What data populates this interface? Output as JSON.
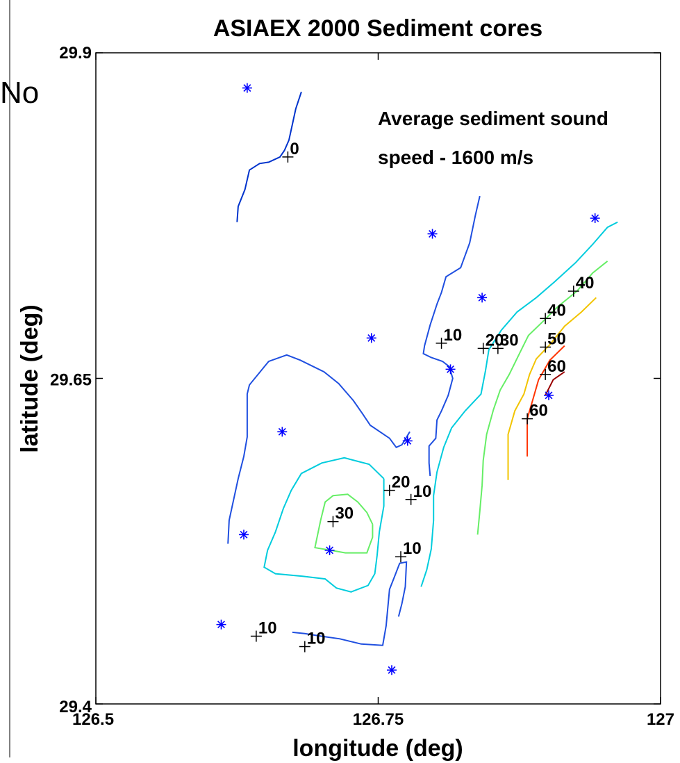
{
  "stray_text": "No",
  "chart_data": {
    "type": "contour",
    "title": "ASIAEX 2000 Sediment cores",
    "xlabel": "longitude (deg)",
    "ylabel": "latitude (deg)",
    "xlim": [
      126.5,
      127
    ],
    "ylim": [
      29.4,
      29.9
    ],
    "xticks": [
      {
        "value": 126.5,
        "label": "126.5"
      },
      {
        "value": 126.75,
        "label": "126.75"
      },
      {
        "value": 127,
        "label": "127"
      }
    ],
    "yticks": [
      {
        "value": 29.9,
        "label": "29.9"
      },
      {
        "value": 29.65,
        "label": "29.65"
      },
      {
        "value": 29.4,
        "label": "29.4"
      }
    ],
    "annotation": [
      "Average sediment sound",
      "speed - 1600 m/s"
    ],
    "core_locations": [
      [
        126.634,
        29.873
      ],
      [
        126.798,
        29.761
      ],
      [
        126.942,
        29.773
      ],
      [
        126.842,
        29.712
      ],
      [
        126.744,
        29.681
      ],
      [
        126.814,
        29.657
      ],
      [
        126.901,
        29.637
      ],
      [
        126.665,
        29.609
      ],
      [
        126.776,
        29.602
      ],
      [
        126.631,
        29.53
      ],
      [
        126.707,
        29.518
      ],
      [
        126.611,
        29.461
      ],
      [
        126.762,
        29.426
      ]
    ],
    "contour_levels": [
      {
        "level": 0,
        "color": "#0033cc"
      },
      {
        "level": 10,
        "color": "#1f4fe0"
      },
      {
        "level": 20,
        "color": "#00ccdd"
      },
      {
        "level": 30,
        "color": "#66ee66"
      },
      {
        "level": 40,
        "color": "#f2c400"
      },
      {
        "level": 50,
        "color": "#ff3300"
      },
      {
        "level": 60,
        "color": "#990000"
      }
    ],
    "contours": [
      {
        "level": 0,
        "points": [
          [
            126.625,
            29.77
          ],
          [
            126.626,
            29.782
          ],
          [
            126.632,
            29.795
          ],
          [
            126.636,
            29.81
          ],
          [
            126.645,
            29.815
          ],
          [
            126.653,
            29.816
          ],
          [
            126.663,
            29.82
          ],
          [
            126.667,
            29.825
          ],
          [
            126.671,
            29.833
          ],
          [
            126.674,
            29.845
          ],
          [
            126.677,
            29.857
          ],
          [
            126.682,
            29.87
          ]
        ]
      },
      {
        "level": 10,
        "points": [
          [
            126.84,
            29.79
          ],
          [
            126.836,
            29.775
          ],
          [
            126.831,
            29.754
          ],
          [
            126.823,
            29.735
          ],
          [
            126.81,
            29.728
          ],
          [
            126.806,
            29.716
          ],
          [
            126.802,
            29.707
          ],
          [
            126.796,
            29.691
          ],
          [
            126.791,
            29.675
          ],
          [
            126.79,
            29.669
          ],
          [
            126.797,
            29.666
          ],
          [
            126.807,
            29.663
          ],
          [
            126.813,
            29.659
          ],
          [
            126.816,
            29.65
          ],
          [
            126.812,
            29.637
          ],
          [
            126.806,
            29.625
          ],
          [
            126.802,
            29.618
          ],
          [
            126.801,
            29.604
          ],
          [
            126.795,
            29.598
          ],
          [
            126.795,
            29.585
          ],
          [
            126.796,
            29.575
          ]
        ]
      },
      {
        "level": 10,
        "points": [
          [
            126.617,
            29.523
          ],
          [
            126.618,
            29.541
          ],
          [
            126.626,
            29.573
          ],
          [
            126.631,
            29.59
          ],
          [
            126.634,
            29.605
          ],
          [
            126.634,
            29.638
          ],
          [
            126.636,
            29.645
          ],
          [
            126.653,
            29.663
          ],
          [
            126.669,
            29.668
          ],
          [
            126.681,
            29.664
          ],
          [
            126.702,
            29.655
          ],
          [
            126.715,
            29.646
          ],
          [
            126.728,
            29.633
          ],
          [
            126.736,
            29.623
          ],
          [
            126.743,
            29.614
          ],
          [
            126.76,
            29.604
          ],
          [
            126.766,
            29.597
          ],
          [
            126.771,
            29.599
          ],
          [
            126.778,
            29.609
          ]
        ]
      },
      {
        "level": 10,
        "points": [
          [
            126.674,
            29.455
          ],
          [
            126.685,
            29.454
          ],
          [
            126.7,
            29.452
          ],
          [
            126.716,
            29.45
          ],
          [
            126.735,
            29.446
          ],
          [
            126.754,
            29.445
          ],
          [
            126.757,
            29.46
          ],
          [
            126.76,
            29.488
          ],
          [
            126.765,
            29.499
          ],
          [
            126.769,
            29.508
          ],
          [
            126.775,
            29.509
          ],
          [
            126.774,
            29.49
          ],
          [
            126.771,
            29.477
          ],
          [
            126.768,
            29.467
          ]
        ]
      },
      {
        "level": 20,
        "points": [
          [
            126.962,
            29.77
          ],
          [
            126.953,
            29.766
          ],
          [
            126.94,
            29.753
          ],
          [
            126.925,
            29.739
          ],
          [
            126.906,
            29.724
          ],
          [
            126.89,
            29.712
          ],
          [
            126.873,
            29.701
          ],
          [
            126.859,
            29.687
          ],
          [
            126.848,
            29.672
          ],
          [
            126.845,
            29.656
          ],
          [
            126.841,
            29.638
          ],
          [
            126.827,
            29.625
          ],
          [
            126.815,
            29.612
          ],
          [
            126.808,
            29.597
          ],
          [
            126.802,
            29.578
          ],
          [
            126.799,
            29.56
          ],
          [
            126.799,
            29.541
          ],
          [
            126.797,
            29.519
          ],
          [
            126.793,
            29.503
          ],
          [
            126.788,
            29.49
          ]
        ]
      },
      {
        "level": 20,
        "points": [
          [
            126.755,
            29.573
          ],
          [
            126.755,
            29.552
          ],
          [
            126.751,
            29.532
          ],
          [
            126.749,
            29.514
          ],
          [
            126.747,
            29.5
          ],
          [
            126.741,
            29.491
          ],
          [
            126.726,
            29.486
          ],
          [
            126.713,
            29.489
          ],
          [
            126.703,
            29.496
          ],
          [
            126.683,
            29.498
          ],
          [
            126.659,
            29.5
          ],
          [
            126.649,
            29.505
          ],
          [
            126.652,
            29.518
          ],
          [
            126.659,
            29.532
          ],
          [
            126.666,
            29.55
          ],
          [
            126.673,
            29.564
          ],
          [
            126.682,
            29.577
          ],
          [
            126.7,
            29.585
          ],
          [
            126.72,
            29.589
          ],
          [
            126.742,
            29.584
          ],
          [
            126.755,
            29.573
          ]
        ]
      },
      {
        "level": 30,
        "points": [
          [
            126.953,
            29.74
          ],
          [
            126.94,
            29.731
          ],
          [
            126.926,
            29.717
          ],
          [
            126.909,
            29.705
          ],
          [
            126.895,
            29.693
          ],
          [
            126.883,
            29.683
          ],
          [
            126.875,
            29.669
          ],
          [
            126.866,
            29.653
          ],
          [
            126.858,
            29.641
          ],
          [
            126.852,
            29.626
          ],
          [
            126.846,
            29.607
          ],
          [
            126.843,
            29.587
          ],
          [
            126.842,
            29.568
          ],
          [
            126.84,
            29.548
          ],
          [
            126.838,
            29.53
          ]
        ]
      },
      {
        "level": 30,
        "points": [
          [
            126.745,
            29.538
          ],
          [
            126.74,
            29.547
          ],
          [
            126.732,
            29.555
          ],
          [
            126.723,
            29.561
          ],
          [
            126.71,
            29.56
          ],
          [
            126.703,
            29.555
          ],
          [
            126.699,
            29.541
          ],
          [
            126.694,
            29.52
          ],
          [
            126.708,
            29.518
          ],
          [
            126.721,
            29.516
          ],
          [
            126.74,
            29.516
          ],
          [
            126.745,
            29.528
          ],
          [
            126.745,
            29.538
          ]
        ]
      },
      {
        "level": 40,
        "points": [
          [
            126.943,
            29.712
          ],
          [
            126.93,
            29.701
          ],
          [
            126.915,
            29.69
          ],
          [
            126.902,
            29.676
          ],
          [
            126.89,
            29.665
          ],
          [
            126.884,
            29.653
          ],
          [
            126.879,
            29.638
          ],
          [
            126.871,
            29.625
          ],
          [
            126.865,
            29.607
          ],
          [
            126.865,
            29.587
          ],
          [
            126.865,
            29.572
          ]
        ]
      },
      {
        "level": 50,
        "points": [
          [
            126.915,
            29.675
          ],
          [
            126.902,
            29.664
          ],
          [
            126.892,
            29.649
          ],
          [
            126.887,
            29.634
          ],
          [
            126.882,
            29.619
          ],
          [
            126.882,
            29.603
          ],
          [
            126.882,
            29.59
          ]
        ]
      },
      {
        "level": 60,
        "points": [
          [
            126.915,
            29.655
          ],
          [
            126.905,
            29.649
          ],
          [
            126.898,
            29.637
          ]
        ]
      }
    ],
    "contour_labels": [
      {
        "text": "0",
        "position": [
          126.67,
          29.82
        ]
      },
      {
        "text": "10",
        "position": [
          126.806,
          29.677
        ]
      },
      {
        "text": "20",
        "position": [
          126.843,
          29.673
        ]
      },
      {
        "text": "30",
        "position": [
          126.856,
          29.673
        ]
      },
      {
        "text": "40",
        "position": [
          126.923,
          29.717
        ]
      },
      {
        "text": "40",
        "position": [
          126.898,
          29.696
        ]
      },
      {
        "text": "50",
        "position": [
          126.898,
          29.674
        ]
      },
      {
        "text": "60",
        "position": [
          126.898,
          29.653
        ]
      },
      {
        "text": "60",
        "position": [
          126.882,
          29.619
        ]
      },
      {
        "text": "20",
        "position": [
          126.76,
          29.564
        ]
      },
      {
        "text": "10",
        "position": [
          126.779,
          29.557
        ]
      },
      {
        "text": "30",
        "position": [
          126.71,
          29.54
        ]
      },
      {
        "text": "10",
        "position": [
          126.77,
          29.513
        ]
      },
      {
        "text": "10",
        "position": [
          126.642,
          29.452
        ]
      },
      {
        "text": "10",
        "position": [
          126.685,
          29.444
        ]
      }
    ]
  }
}
